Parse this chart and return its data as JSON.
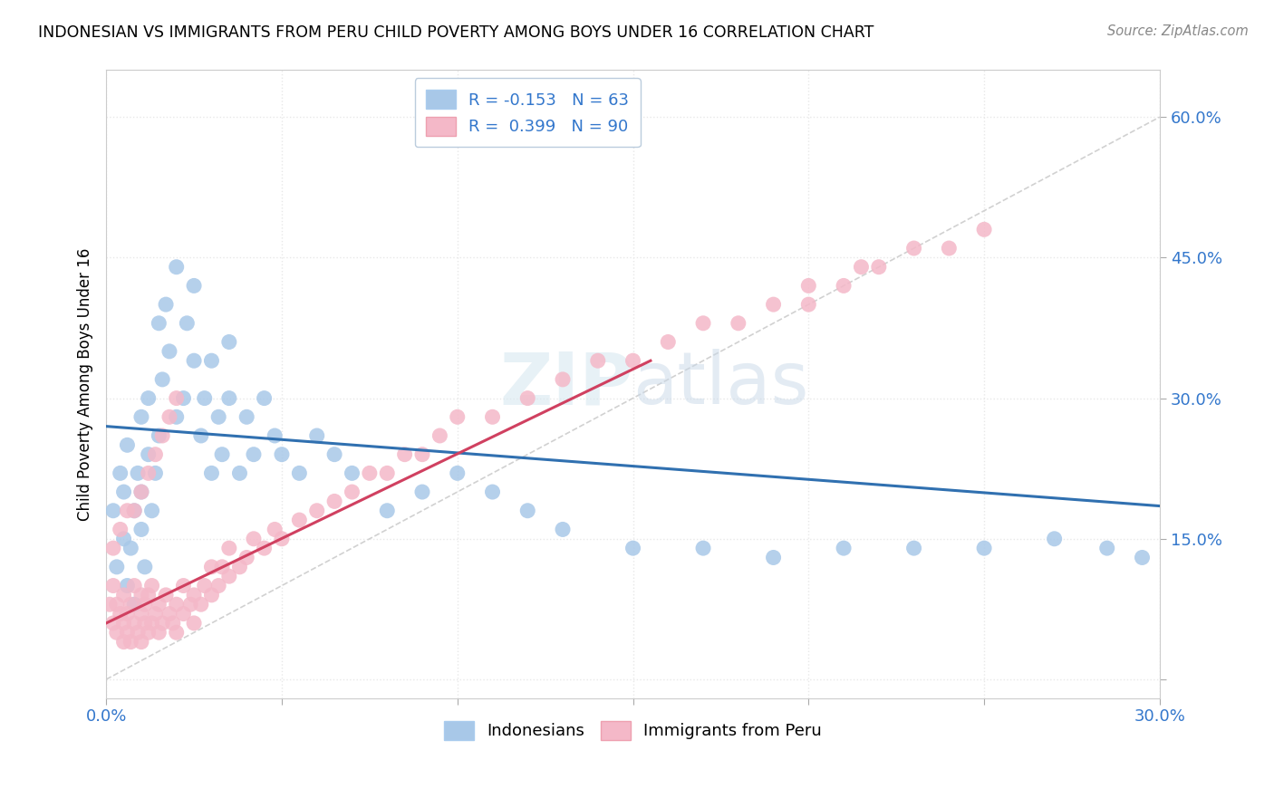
{
  "title": "INDONESIAN VS IMMIGRANTS FROM PERU CHILD POVERTY AMONG BOYS UNDER 16 CORRELATION CHART",
  "source": "Source: ZipAtlas.com",
  "ylabel": "Child Poverty Among Boys Under 16",
  "xlim": [
    0.0,
    0.3
  ],
  "ylim": [
    -0.02,
    0.65
  ],
  "xticks": [
    0.0,
    0.05,
    0.1,
    0.15,
    0.2,
    0.25,
    0.3
  ],
  "yticks": [
    0.0,
    0.15,
    0.3,
    0.45,
    0.6
  ],
  "indonesian_R": -0.153,
  "indonesian_N": 63,
  "peru_R": 0.399,
  "peru_N": 90,
  "blue_color": "#a8c8e8",
  "pink_color": "#f4b8c8",
  "blue_line_color": "#3070b0",
  "pink_line_color": "#d04060",
  "ref_line_color": "#cccccc",
  "background_color": "#ffffff",
  "grid_color": "#e8e8e8",
  "indonesian_scatter_x": [
    0.002,
    0.003,
    0.004,
    0.005,
    0.005,
    0.006,
    0.006,
    0.007,
    0.008,
    0.008,
    0.009,
    0.01,
    0.01,
    0.01,
    0.011,
    0.012,
    0.012,
    0.013,
    0.014,
    0.015,
    0.015,
    0.016,
    0.017,
    0.018,
    0.02,
    0.02,
    0.022,
    0.023,
    0.025,
    0.025,
    0.027,
    0.028,
    0.03,
    0.03,
    0.032,
    0.033,
    0.035,
    0.035,
    0.038,
    0.04,
    0.042,
    0.045,
    0.048,
    0.05,
    0.055,
    0.06,
    0.065,
    0.07,
    0.08,
    0.09,
    0.1,
    0.11,
    0.12,
    0.13,
    0.15,
    0.17,
    0.19,
    0.21,
    0.23,
    0.25,
    0.27,
    0.285,
    0.295
  ],
  "indonesian_scatter_y": [
    0.18,
    0.12,
    0.22,
    0.15,
    0.2,
    0.1,
    0.25,
    0.14,
    0.18,
    0.08,
    0.22,
    0.16,
    0.2,
    0.28,
    0.12,
    0.24,
    0.3,
    0.18,
    0.22,
    0.26,
    0.38,
    0.32,
    0.4,
    0.35,
    0.28,
    0.44,
    0.3,
    0.38,
    0.34,
    0.42,
    0.26,
    0.3,
    0.22,
    0.34,
    0.28,
    0.24,
    0.3,
    0.36,
    0.22,
    0.28,
    0.24,
    0.3,
    0.26,
    0.24,
    0.22,
    0.26,
    0.24,
    0.22,
    0.18,
    0.2,
    0.22,
    0.2,
    0.18,
    0.16,
    0.14,
    0.14,
    0.13,
    0.14,
    0.14,
    0.14,
    0.15,
    0.14,
    0.13
  ],
  "peru_scatter_x": [
    0.001,
    0.002,
    0.002,
    0.003,
    0.003,
    0.004,
    0.005,
    0.005,
    0.005,
    0.006,
    0.006,
    0.007,
    0.007,
    0.008,
    0.008,
    0.009,
    0.01,
    0.01,
    0.01,
    0.011,
    0.011,
    0.012,
    0.012,
    0.013,
    0.013,
    0.014,
    0.015,
    0.015,
    0.016,
    0.017,
    0.018,
    0.019,
    0.02,
    0.02,
    0.022,
    0.022,
    0.024,
    0.025,
    0.025,
    0.027,
    0.028,
    0.03,
    0.03,
    0.032,
    0.033,
    0.035,
    0.035,
    0.038,
    0.04,
    0.042,
    0.045,
    0.048,
    0.05,
    0.055,
    0.06,
    0.065,
    0.07,
    0.075,
    0.08,
    0.085,
    0.09,
    0.095,
    0.1,
    0.11,
    0.12,
    0.13,
    0.14,
    0.15,
    0.16,
    0.17,
    0.18,
    0.19,
    0.2,
    0.2,
    0.21,
    0.215,
    0.22,
    0.23,
    0.24,
    0.25,
    0.002,
    0.004,
    0.006,
    0.008,
    0.01,
    0.012,
    0.014,
    0.016,
    0.018,
    0.02
  ],
  "peru_scatter_y": [
    0.08,
    0.06,
    0.1,
    0.05,
    0.08,
    0.07,
    0.04,
    0.06,
    0.09,
    0.05,
    0.07,
    0.04,
    0.08,
    0.06,
    0.1,
    0.05,
    0.04,
    0.07,
    0.09,
    0.06,
    0.08,
    0.05,
    0.09,
    0.06,
    0.1,
    0.07,
    0.05,
    0.08,
    0.06,
    0.09,
    0.07,
    0.06,
    0.05,
    0.08,
    0.07,
    0.1,
    0.08,
    0.06,
    0.09,
    0.08,
    0.1,
    0.09,
    0.12,
    0.1,
    0.12,
    0.11,
    0.14,
    0.12,
    0.13,
    0.15,
    0.14,
    0.16,
    0.15,
    0.17,
    0.18,
    0.19,
    0.2,
    0.22,
    0.22,
    0.24,
    0.24,
    0.26,
    0.28,
    0.28,
    0.3,
    0.32,
    0.34,
    0.34,
    0.36,
    0.38,
    0.38,
    0.4,
    0.4,
    0.42,
    0.42,
    0.44,
    0.44,
    0.46,
    0.46,
    0.48,
    0.14,
    0.16,
    0.18,
    0.18,
    0.2,
    0.22,
    0.24,
    0.26,
    0.28,
    0.3
  ]
}
